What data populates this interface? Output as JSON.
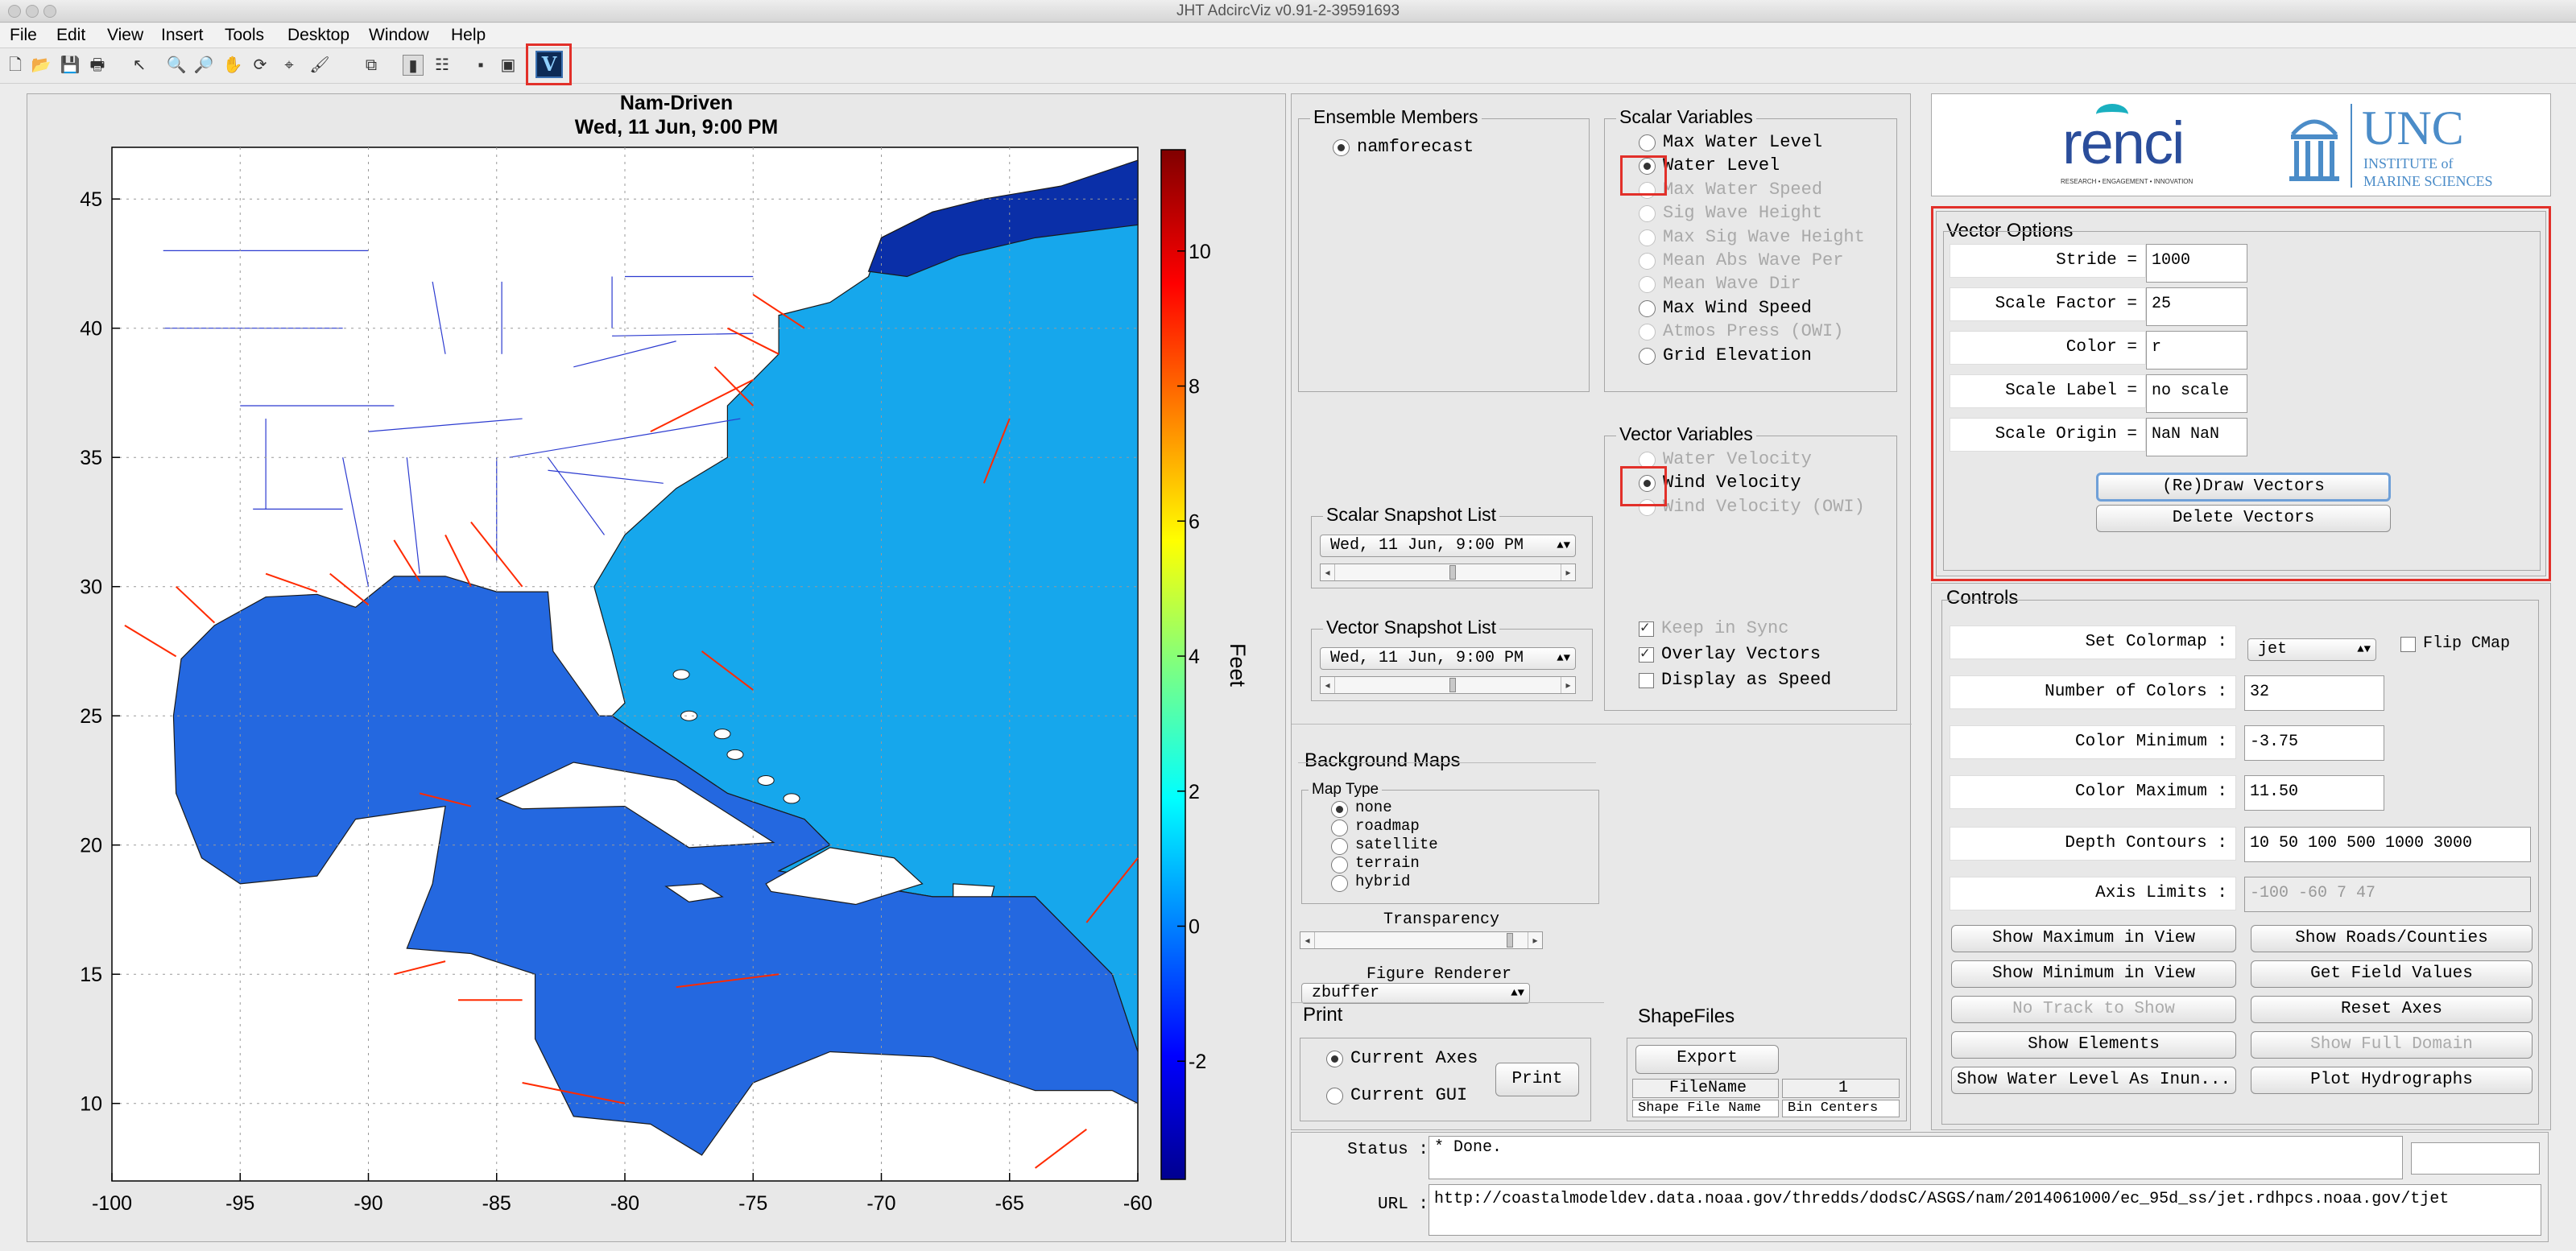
{
  "window": {
    "title": "JHT AdcircViz v0.91-2-39591693"
  },
  "menu": [
    "File",
    "Edit",
    "View",
    "Insert",
    "Tools",
    "Desktop",
    "Window",
    "Help"
  ],
  "toolbar": {
    "icons": [
      "new-file-icon",
      "open-icon",
      "save-icon",
      "print-icon",
      "pointer-icon",
      "zoom-in-icon",
      "zoom-out-icon",
      "pan-icon",
      "rotate-icon",
      "data-cursor-icon",
      "brush-icon",
      "link-icon",
      "colorbar-icon",
      "legend-icon",
      "hide-icon",
      "show-icon",
      "viz-logo-icon"
    ]
  },
  "plot": {
    "title_line1": "Nam-Driven",
    "title_line2": "Wed, 11 Jun,  9:00 PM",
    "x_ticks": [
      "-100",
      "-95",
      "-90",
      "-85",
      "-80",
      "-75",
      "-70",
      "-65",
      "-60"
    ],
    "y_ticks": [
      "45",
      "40",
      "35",
      "30",
      "25",
      "20",
      "15",
      "10"
    ],
    "colorbar_ticks": [
      "10",
      "8",
      "6",
      "4",
      "2",
      "0",
      "-2"
    ],
    "colorbar_label": "Feet",
    "colors": {
      "ocean": "#1e8be9",
      "gulf": "#2468e0",
      "atlantic": "#16a7ec",
      "northeast": "#0a2fa8",
      "arrows": "#ff2a00",
      "land": "#ffffff",
      "states": "#2c3bd0"
    }
  },
  "ensemble": {
    "title": "Ensemble Members",
    "members": [
      {
        "label": "namforecast",
        "selected": true
      }
    ]
  },
  "scalar_vars": {
    "title": "Scalar Variables",
    "items": [
      {
        "label": "Max Water Level",
        "state": "enabled"
      },
      {
        "label": "Water Level",
        "state": "selected"
      },
      {
        "label": "Max Water Speed",
        "state": "disabled"
      },
      {
        "label": "Sig Wave Height",
        "state": "disabled"
      },
      {
        "label": "Max Sig Wave Height",
        "state": "disabled"
      },
      {
        "label": "Mean Abs Wave Per",
        "state": "disabled"
      },
      {
        "label": "Mean Wave Dir",
        "state": "disabled"
      },
      {
        "label": "Max Wind Speed",
        "state": "enabled"
      },
      {
        "label": "Atmos Press (OWI)",
        "state": "disabled"
      },
      {
        "label": "Grid Elevation",
        "state": "enabled"
      }
    ]
  },
  "vector_vars": {
    "title": "Vector Variables",
    "items": [
      {
        "label": "Water Velocity",
        "state": "disabled"
      },
      {
        "label": "Wind Velocity",
        "state": "selected"
      },
      {
        "label": "Wind Velocity (OWI)",
        "state": "disabled"
      }
    ]
  },
  "sync": {
    "keep_in_sync": "Keep in Sync",
    "overlay_vectors": "Overlay Vectors",
    "display_speed": "Display as Speed"
  },
  "scalar_snapshot": {
    "title": "Scalar Snapshot List",
    "value": "Wed, 11 Jun,  9:00 PM"
  },
  "vector_snapshot": {
    "title": "Vector Snapshot List",
    "value": "Wed, 11 Jun,  9:00 PM"
  },
  "background_maps": {
    "title": "Background Maps",
    "map_type_title": "Map Type",
    "options": [
      "none",
      "roadmap",
      "satellite",
      "terrain",
      "hybrid"
    ],
    "selected": "none",
    "transparency_label": "Transparency",
    "renderer_label": "Figure Renderer",
    "renderer_value": "zbuffer"
  },
  "print": {
    "title": "Print",
    "current_axes": "Current Axes",
    "current_gui": "Current GUI",
    "button": "Print"
  },
  "shapefiles": {
    "title": "ShapeFiles",
    "export": "Export",
    "col1_header": "FileName",
    "col2_header": "1",
    "col1_label": "Shape File Name",
    "col2_label": "Bin Centers"
  },
  "logos": {
    "renci": "renci",
    "renci_tagline": "RESEARCH • ENGAGEMENT • INNOVATION",
    "unc": "UNC",
    "unc_sub1": "INSTITUTE of",
    "unc_sub2": "MARINE SCIENCES"
  },
  "vector_options": {
    "title": "Vector Options",
    "stride_label": "Stride =",
    "stride": "1000",
    "scale_factor_label": "Scale Factor =",
    "scale_factor": "25",
    "color_label": "Color =",
    "color": "r",
    "scale_label_label": "Scale Label =",
    "scale_label": "no scale",
    "scale_origin_label": "Scale Origin =",
    "scale_origin": "NaN NaN",
    "redraw": "(Re)Draw Vectors",
    "delete": "Delete Vectors"
  },
  "controls": {
    "title": "Controls",
    "set_colormap_label": "Set Colormap :",
    "colormap": "jet",
    "flip_cmap": "Flip CMap",
    "num_colors_label": "Number of Colors :",
    "num_colors": "32",
    "color_min_label": "Color Minimum :",
    "color_min": "-3.75",
    "color_max_label": "Color Maximum :",
    "color_max": "11.50",
    "depth_label": "Depth Contours :",
    "depth": "10 50 100 500 1000 3000",
    "axis_label": "Axis Limits :",
    "axis": "-100  -60    7   47",
    "buttons": {
      "show_max": "Show Maximum in View",
      "show_roads": "Show Roads/Counties",
      "show_min": "Show Minimum in View",
      "get_field": "Get Field Values",
      "no_track": "No Track to Show",
      "reset_axes": "Reset Axes",
      "show_elements": "Show Elements",
      "show_full": "Show Full Domain",
      "show_water": "Show Water Level As Inun...",
      "plot_hydro": "Plot Hydrographs"
    }
  },
  "status": {
    "label": "Status :",
    "value": "* Done.",
    "url_label": "URL :",
    "url": "http://coastalmodeldev.data.noaa.gov/thredds/dodsC/ASGS/nam/2014061000/ec_95d_ss/jet.rdhpcs.noaa.gov/tjet"
  }
}
